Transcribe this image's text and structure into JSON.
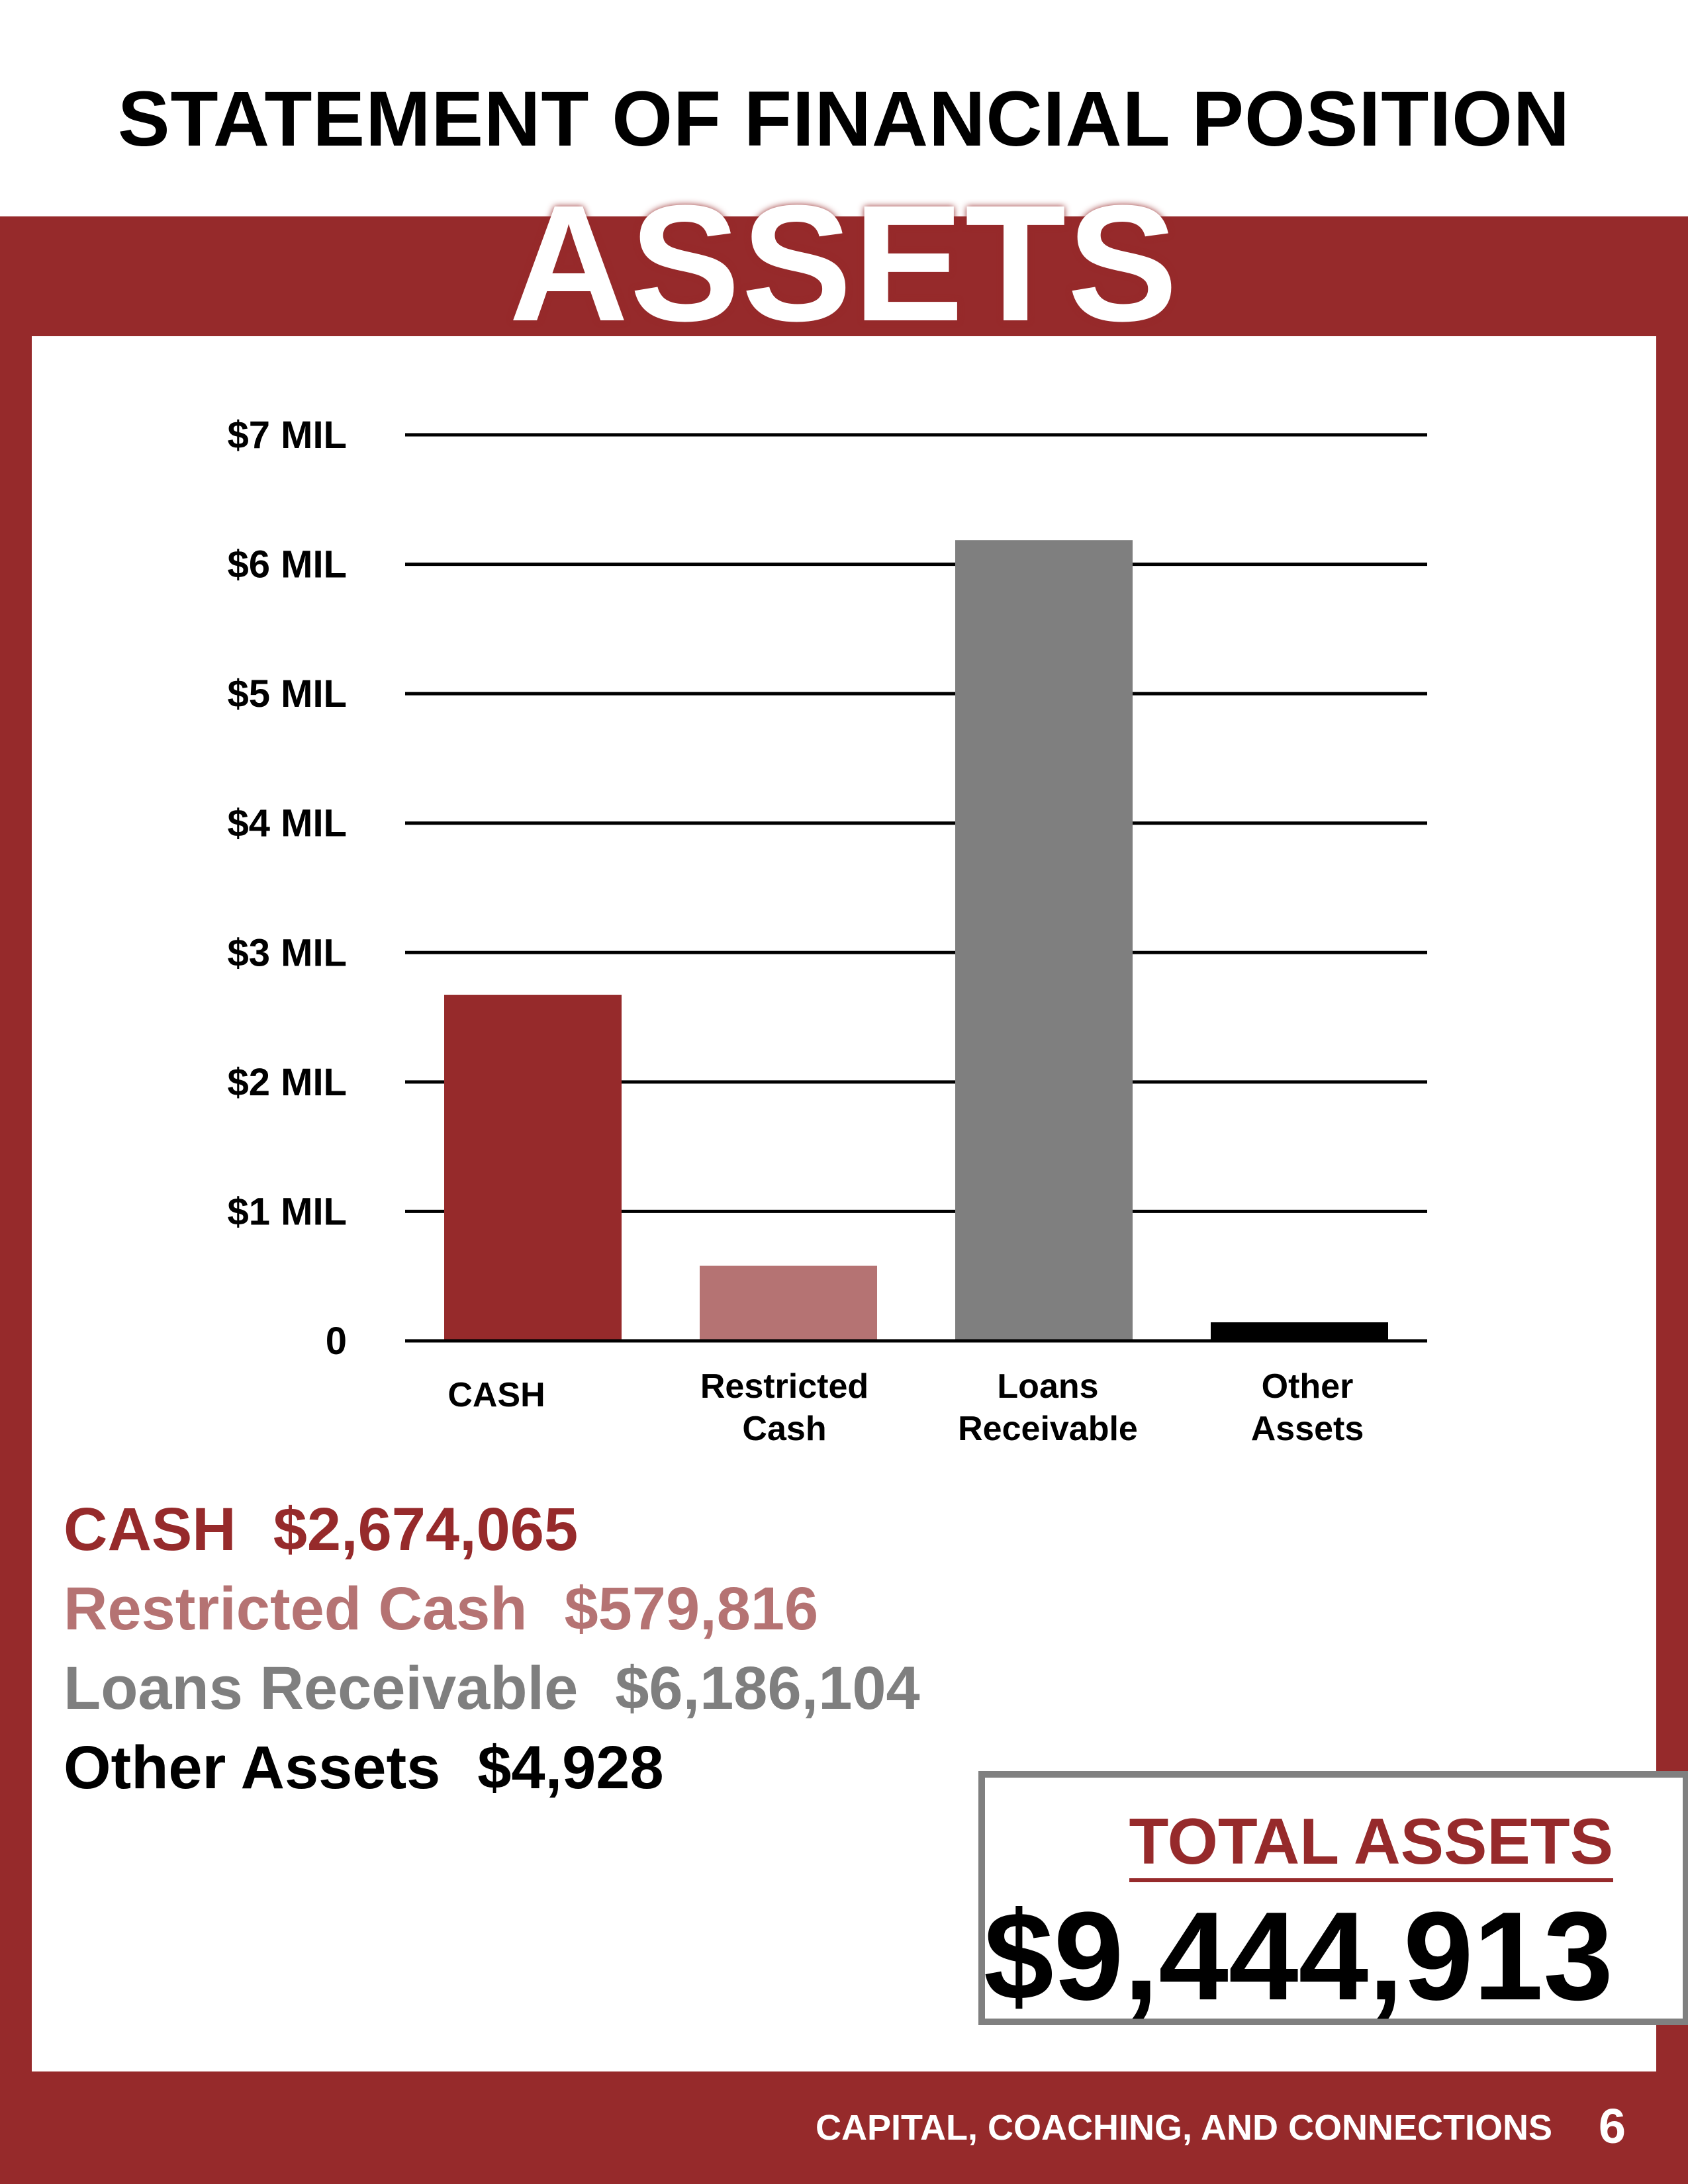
{
  "page": {
    "title": "STATEMENT OF FINANCIAL POSITION",
    "section_title": "ASSETS",
    "footer_text": "CAPITAL, COACHING, AND CONNECTIONS",
    "page_number": "6"
  },
  "colors": {
    "accent": "#962a2b",
    "restricted": "#b57373",
    "loans": "#7f7f7f",
    "other": "#000000"
  },
  "chart_data": {
    "type": "bar",
    "categories": [
      [
        "CASH"
      ],
      [
        "Restricted",
        "Cash"
      ],
      [
        "Loans",
        "Receivable"
      ],
      [
        "Other",
        "Assets"
      ]
    ],
    "values": [
      2674065,
      579816,
      6186104,
      4928
    ],
    "bar_colors": [
      "#962a2b",
      "#b57373",
      "#7f7f7f",
      "#000000"
    ],
    "ylim": [
      0,
      7000000
    ],
    "yticks": [
      0,
      1000000,
      2000000,
      3000000,
      4000000,
      5000000,
      6000000,
      7000000
    ],
    "ytick_labels": [
      "0",
      "$1 MIL",
      "$2 MIL",
      "$3 MIL",
      "$4 MIL",
      "$5 MIL",
      "$6 MIL",
      "$7 MIL"
    ],
    "grid": true
  },
  "legend": [
    {
      "label": "CASH",
      "amount": "$2,674,065",
      "color": "#962a2b"
    },
    {
      "label": "Restricted Cash",
      "amount": "$579,816",
      "color": "#b57373"
    },
    {
      "label": "Loans Receivable",
      "amount": "$6,186,104",
      "color": "#7f7f7f"
    },
    {
      "label": "Other Assets",
      "amount": "$4,928",
      "color": "#000000"
    }
  ],
  "total": {
    "label": "TOTAL ASSETS",
    "value": "$9,444,913"
  }
}
